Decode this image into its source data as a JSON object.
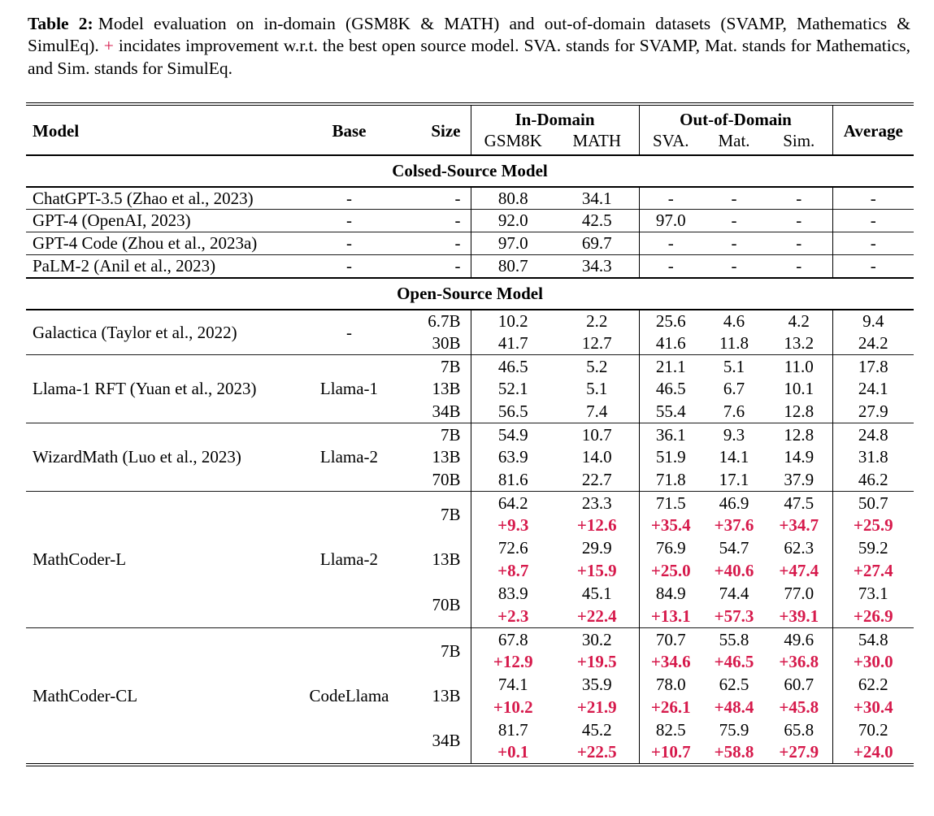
{
  "colors": {
    "accent_red": "#d6194b",
    "text": "#000000",
    "background": "#ffffff"
  },
  "caption": {
    "label": "Table 2:",
    "text_before_plus": "Model evaluation on in-domain (GSM8K & MATH) and out-of-domain datasets (SVAMP, Mathematics & SimulEq).",
    "plus": "+",
    "text_after_plus": "incidates improvement w.r.t. the best open source model. SVA. stands for SVAMP, Mat. stands for Mathematics, and Sim. stands for SimulEq."
  },
  "table": {
    "header": {
      "model": "Model",
      "base": "Base",
      "size": "Size",
      "in_domain": {
        "label": "In-Domain",
        "cols": [
          "GSM8K",
          "MATH"
        ]
      },
      "out_of_domain": {
        "label": "Out-of-Domain",
        "cols": [
          "SVA.",
          "Mat.",
          "Sim."
        ]
      },
      "average": "Average"
    },
    "sections": [
      {
        "title": "Colsed-Source Model",
        "groups": [
          {
            "model": "ChatGPT-3.5 (Zhao et al., 2023)",
            "base": "-",
            "rows": [
              {
                "size": "-",
                "values": [
                  "80.8",
                  "34.1",
                  "-",
                  "-",
                  "-",
                  "-"
                ]
              }
            ]
          },
          {
            "model": "GPT-4 (OpenAI, 2023)",
            "base": "-",
            "rows": [
              {
                "size": "-",
                "values": [
                  "92.0",
                  "42.5",
                  "97.0",
                  "-",
                  "-",
                  "-"
                ]
              }
            ]
          },
          {
            "model": "GPT-4 Code (Zhou et al., 2023a)",
            "base": "-",
            "rows": [
              {
                "size": "-",
                "values": [
                  "97.0",
                  "69.7",
                  "-",
                  "-",
                  "-",
                  "-"
                ]
              }
            ]
          },
          {
            "model": "PaLM-2 (Anil et al., 2023)",
            "base": "-",
            "rows": [
              {
                "size": "-",
                "values": [
                  "80.7",
                  "34.3",
                  "-",
                  "-",
                  "-",
                  "-"
                ]
              }
            ]
          }
        ]
      },
      {
        "title": "Open-Source Model",
        "groups": [
          {
            "model": "Galactica (Taylor et al., 2022)",
            "base": "-",
            "rows": [
              {
                "size": "6.7B",
                "values": [
                  "10.2",
                  "2.2",
                  "25.6",
                  "4.6",
                  "4.2",
                  "9.4"
                ]
              },
              {
                "size": "30B",
                "values": [
                  "41.7",
                  "12.7",
                  "41.6",
                  "11.8",
                  "13.2",
                  "24.2"
                ]
              }
            ]
          },
          {
            "model": "Llama-1 RFT (Yuan et al., 2023)",
            "base": "Llama-1",
            "rows": [
              {
                "size": "7B",
                "values": [
                  "46.5",
                  "5.2",
                  "21.1",
                  "5.1",
                  "11.0",
                  "17.8"
                ]
              },
              {
                "size": "13B",
                "values": [
                  "52.1",
                  "5.1",
                  "46.5",
                  "6.7",
                  "10.1",
                  "24.1"
                ]
              },
              {
                "size": "34B",
                "values": [
                  "56.5",
                  "7.4",
                  "55.4",
                  "7.6",
                  "12.8",
                  "27.9"
                ]
              }
            ]
          },
          {
            "model": "WizardMath (Luo et al., 2023)",
            "base": "Llama-2",
            "rows": [
              {
                "size": "7B",
                "values": [
                  "54.9",
                  "10.7",
                  "36.1",
                  "9.3",
                  "12.8",
                  "24.8"
                ]
              },
              {
                "size": "13B",
                "values": [
                  "63.9",
                  "14.0",
                  "51.9",
                  "14.1",
                  "14.9",
                  "31.8"
                ]
              },
              {
                "size": "70B",
                "values": [
                  "81.6",
                  "22.7",
                  "71.8",
                  "17.1",
                  "37.9",
                  "46.2"
                ]
              }
            ]
          },
          {
            "model": "MathCoder-L",
            "base": "Llama-2",
            "rows": [
              {
                "size": "7B",
                "values": [
                  "64.2",
                  "23.3",
                  "71.5",
                  "46.9",
                  "47.5",
                  "50.7"
                ],
                "deltas": [
                  "+9.3",
                  "+12.6",
                  "+35.4",
                  "+37.6",
                  "+34.7",
                  "+25.9"
                ]
              },
              {
                "size": "13B",
                "values": [
                  "72.6",
                  "29.9",
                  "76.9",
                  "54.7",
                  "62.3",
                  "59.2"
                ],
                "deltas": [
                  "+8.7",
                  "+15.9",
                  "+25.0",
                  "+40.6",
                  "+47.4",
                  "+27.4"
                ]
              },
              {
                "size": "70B",
                "values": [
                  "83.9",
                  "45.1",
                  "84.9",
                  "74.4",
                  "77.0",
                  "73.1"
                ],
                "deltas": [
                  "+2.3",
                  "+22.4",
                  "+13.1",
                  "+57.3",
                  "+39.1",
                  "+26.9"
                ]
              }
            ]
          },
          {
            "model": "MathCoder-CL",
            "base": "CodeLlama",
            "rows": [
              {
                "size": "7B",
                "values": [
                  "67.8",
                  "30.2",
                  "70.7",
                  "55.8",
                  "49.6",
                  "54.8"
                ],
                "deltas": [
                  "+12.9",
                  "+19.5",
                  "+34.6",
                  "+46.5",
                  "+36.8",
                  "+30.0"
                ]
              },
              {
                "size": "13B",
                "values": [
                  "74.1",
                  "35.9",
                  "78.0",
                  "62.5",
                  "60.7",
                  "62.2"
                ],
                "deltas": [
                  "+10.2",
                  "+21.9",
                  "+26.1",
                  "+48.4",
                  "+45.8",
                  "+30.4"
                ]
              },
              {
                "size": "34B",
                "values": [
                  "81.7",
                  "45.2",
                  "82.5",
                  "75.9",
                  "65.8",
                  "70.2"
                ],
                "deltas": [
                  "+0.1",
                  "+22.5",
                  "+10.7",
                  "+58.8",
                  "+27.9",
                  "+24.0"
                ]
              }
            ]
          }
        ]
      }
    ]
  }
}
